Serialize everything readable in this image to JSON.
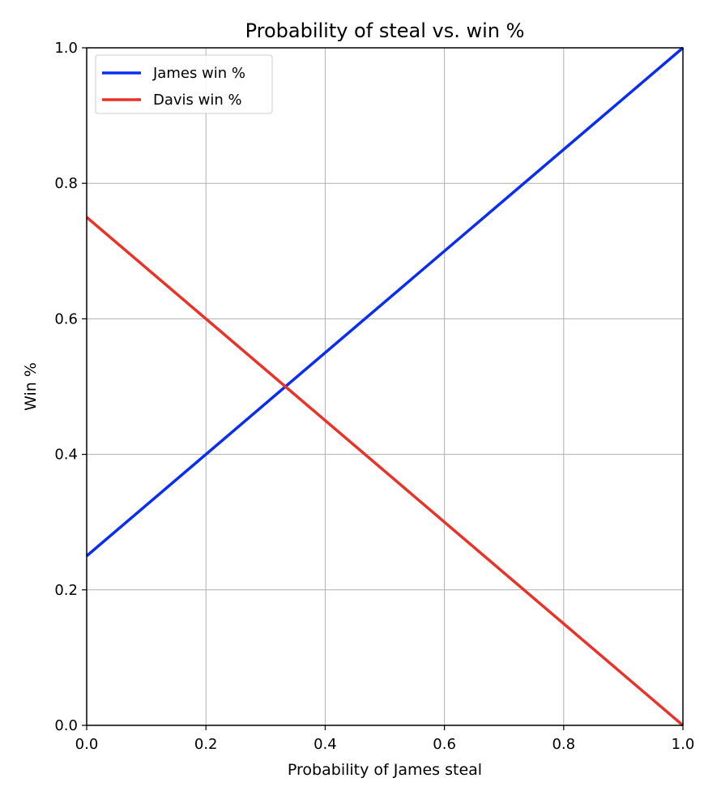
{
  "chart_data": {
    "type": "line",
    "title": "Probability of steal vs. win %",
    "xlabel": "Probability of James steal",
    "ylabel": "Win %",
    "xlim": [
      0.0,
      1.0
    ],
    "ylim": [
      0.0,
      1.0
    ],
    "xticks": [
      "0.0",
      "0.2",
      "0.4",
      "0.6",
      "0.8",
      "1.0"
    ],
    "yticks": [
      "0.0",
      "0.2",
      "0.4",
      "0.6",
      "0.8",
      "1.0"
    ],
    "grid": true,
    "legend_position": "upper-left",
    "series": [
      {
        "name": "James win %",
        "color": "#0a2ef0",
        "x": [
          0.0,
          1.0
        ],
        "y": [
          0.25,
          1.0
        ]
      },
      {
        "name": "Davis win %",
        "color": "#e83328",
        "x": [
          0.0,
          1.0
        ],
        "y": [
          0.75,
          0.0
        ]
      }
    ]
  }
}
